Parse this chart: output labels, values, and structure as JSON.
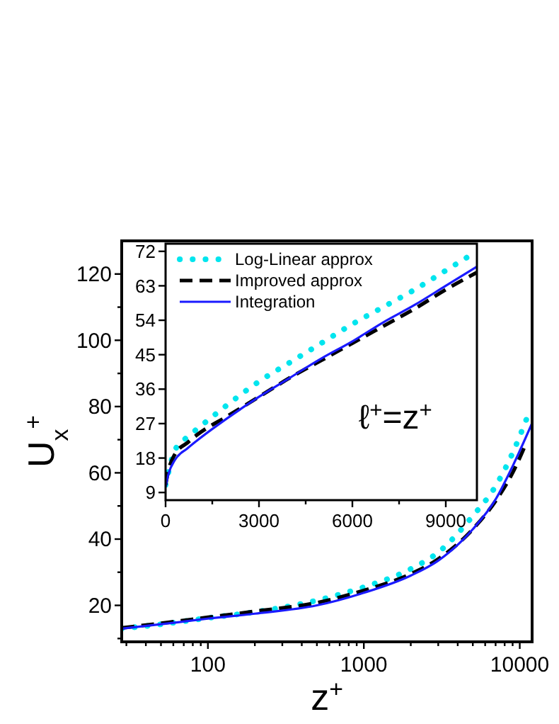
{
  "chart_data": [
    {
      "type": "line",
      "xlabel": "z$^{+}$",
      "ylabel": "U$_{x}$$^{+}$",
      "log": "x",
      "xlim": [
        28,
        12000
      ],
      "ylim": [
        9,
        130
      ],
      "xticks": [
        {
          "value": 30,
          "label": null
        },
        {
          "value": 40,
          "label": null
        },
        {
          "value": 50,
          "label": null
        },
        {
          "value": 60,
          "label": null
        },
        {
          "value": 70,
          "label": null
        },
        {
          "value": 80,
          "label": null
        },
        {
          "value": 90,
          "label": null
        },
        100,
        {
          "value": 200,
          "label": null
        },
        {
          "value": 300,
          "label": null
        },
        {
          "value": 400,
          "label": null
        },
        {
          "value": 500,
          "label": null
        },
        {
          "value": 600,
          "label": null
        },
        {
          "value": 700,
          "label": null
        },
        {
          "value": 800,
          "label": null
        },
        {
          "value": 900,
          "label": null
        },
        1000,
        {
          "value": 2000,
          "label": null
        },
        {
          "value": 3000,
          "label": null
        },
        {
          "value": 4000,
          "label": null
        },
        {
          "value": 5000,
          "label": null
        },
        {
          "value": 6000,
          "label": null
        },
        {
          "value": 7000,
          "label": null
        },
        {
          "value": 8000,
          "label": null
        },
        {
          "value": 9000,
          "label": null
        },
        10000
      ],
      "yticks": [
        {
          "value": 10,
          "label": null
        },
        20,
        {
          "value": 30,
          "label": null
        },
        40,
        {
          "value": 50,
          "label": null
        },
        60,
        {
          "value": 70,
          "label": null
        },
        80,
        {
          "value": 90,
          "label": null
        },
        100,
        {
          "value": 110,
          "label": null
        },
        120
      ],
      "grid": false,
      "legend": false,
      "series": [
        {
          "color": "#00e5ee",
          "line_style": "dotted",
          "x": [
            28,
            50,
            100,
            200,
            500,
            1000,
            2000,
            3000,
            5000,
            7000,
            9000,
            11000
          ],
          "values": [
            13,
            14.3,
            16.2,
            18,
            21.5,
            25.5,
            31,
            36,
            47,
            56,
            66,
            76
          ]
        },
        {
          "color": "#000000",
          "line_style": "dashed",
          "x": [
            28,
            50,
            100,
            200,
            500,
            1000,
            2000,
            3000,
            5000,
            7000,
            9000,
            11000
          ],
          "values": [
            13.2,
            14.6,
            16.4,
            18.2,
            20.8,
            24.5,
            29.5,
            34,
            43,
            51.5,
            60,
            69
          ]
        },
        {
          "color": "#1a1aff",
          "line_style": "solid",
          "x": [
            28,
            50,
            100,
            200,
            500,
            1000,
            2000,
            3000,
            5000,
            7000,
            9000,
            12000
          ],
          "values": [
            13,
            14.3,
            16,
            17.5,
            20,
            23.8,
            29,
            33.5,
            43,
            52,
            62,
            75
          ]
        }
      ]
    },
    {
      "type": "line",
      "xlim": [
        0,
        10000
      ],
      "ylim": [
        7,
        74
      ],
      "xticks": [
        0,
        {
          "value": 1500,
          "label": null
        },
        3000,
        {
          "value": 4500,
          "label": null
        },
        6000,
        {
          "value": 7500,
          "label": null
        },
        9000
      ],
      "yticks": [
        9,
        18,
        27,
        36,
        45,
        54,
        63,
        72
      ],
      "grid": false,
      "legend": "top left",
      "annotations": [
        "ℓ$^{+}$=z$^{+}$"
      ],
      "series": [
        {
          "name": "Log-Linear approx",
          "color": "#00e5ee",
          "line_style": "dotted",
          "x": [
            0,
            300,
            700,
            1000,
            2000,
            3000,
            4000,
            5000,
            6000,
            7000,
            8000,
            9000,
            10000
          ],
          "values": [
            11,
            20,
            23.5,
            25.5,
            32,
            38,
            43,
            48,
            53,
            57.5,
            62,
            67,
            72
          ]
        },
        {
          "name": "Improved approx",
          "color": "#000000",
          "line_style": "dashed",
          "x": [
            0,
            100,
            300,
            700,
            1000,
            2000,
            3000,
            4000,
            5000,
            6000,
            7000,
            8000,
            9000,
            10000
          ],
          "values": [
            11,
            15,
            19,
            22,
            24,
            29,
            34,
            39,
            43.5,
            48,
            52.5,
            57,
            62,
            66.5
          ]
        },
        {
          "name": "Integration",
          "color": "#1a1aff",
          "line_style": "solid",
          "x": [
            0,
            100,
            300,
            700,
            1000,
            2000,
            3000,
            4000,
            5000,
            6000,
            7000,
            8000,
            9000,
            10000
          ],
          "values": [
            10.5,
            14,
            17.5,
            20.5,
            22.5,
            28.5,
            34,
            39,
            44,
            48.5,
            53.5,
            58,
            63,
            68
          ]
        }
      ]
    }
  ]
}
